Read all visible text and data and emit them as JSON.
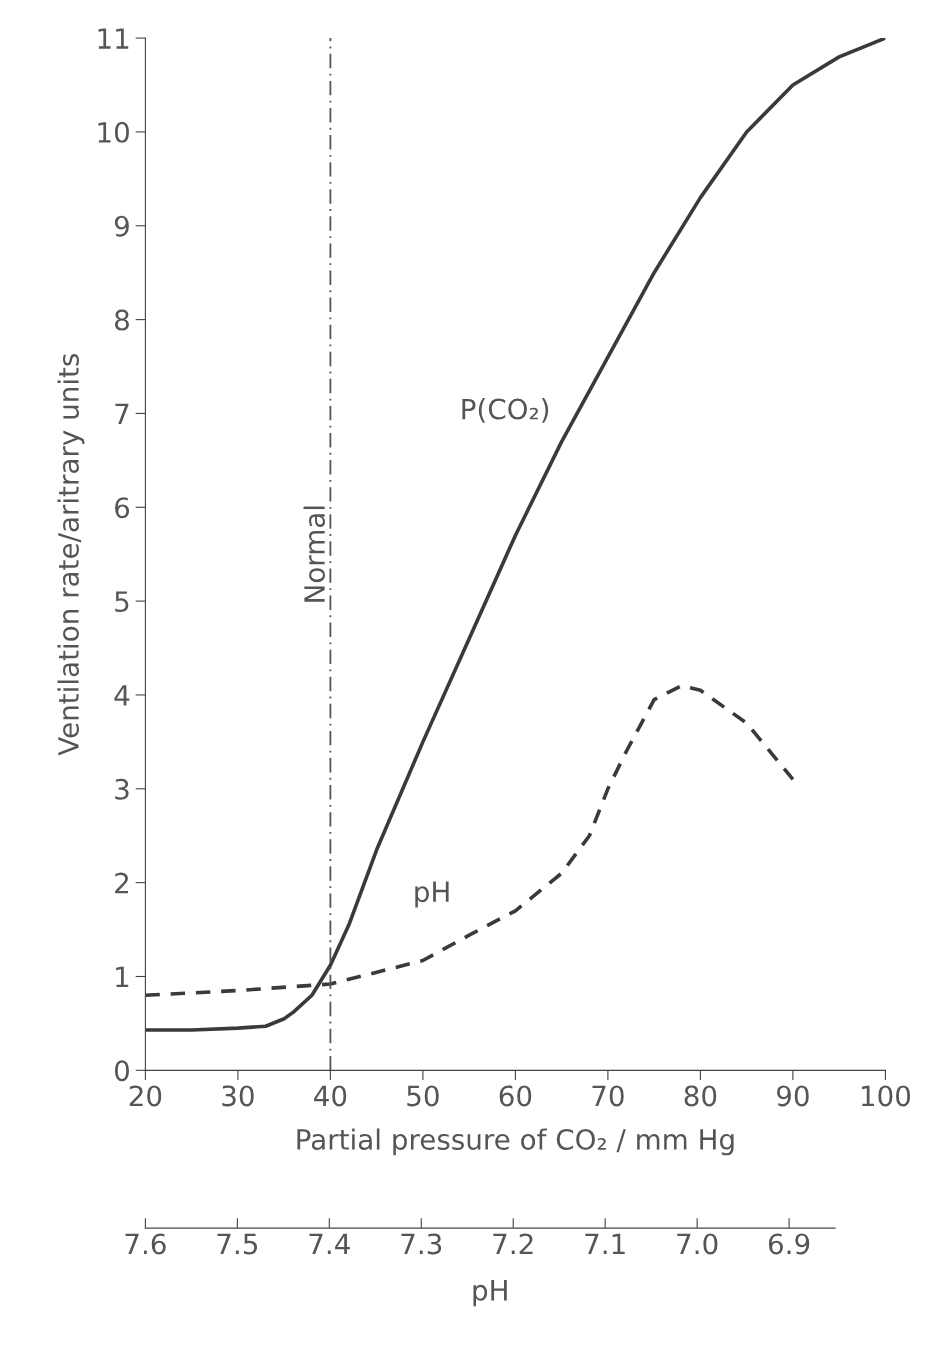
{
  "chart_data": {
    "type": "line",
    "xlabel": "Partial pressure of CO₂ / mm Hg",
    "ylabel": "Ventilation rate/aritrary units",
    "x2label": "pH",
    "xlim": [
      20,
      100
    ],
    "xticks": [
      20,
      30,
      40,
      50,
      60,
      70,
      80,
      90,
      100
    ],
    "ylim": [
      0,
      11
    ],
    "yticks": [
      0,
      1,
      2,
      3,
      4,
      5,
      6,
      7,
      8,
      9,
      10,
      11
    ],
    "x2lim": [
      7.6,
      6.85
    ],
    "x2ticks": [
      7.6,
      7.5,
      7.4,
      7.3,
      7.2,
      7.1,
      {
        "value": 7.0,
        "label": "7.0"
      },
      6.9
    ],
    "grid": false,
    "legend": false,
    "series": [
      {
        "name": "P(CO₂)",
        "color": "#3a3a3a",
        "line_style": "solid",
        "x": [
          20,
          25,
          30,
          33,
          35,
          36,
          38,
          40,
          42,
          45,
          50,
          55,
          60,
          65,
          70,
          75,
          80,
          85,
          90,
          95,
          100
        ],
        "values": [
          0.43,
          0.43,
          0.45,
          0.47,
          0.55,
          0.62,
          0.8,
          1.12,
          1.55,
          2.35,
          3.5,
          4.6,
          5.7,
          6.7,
          7.6,
          8.5,
          9.3,
          10.0,
          10.5,
          10.8,
          11.0
        ]
      },
      {
        "name": "pH",
        "color": "#3a3a3a",
        "line_style": "dashed",
        "x": [
          20,
          30,
          40,
          50,
          55,
          60,
          65,
          68,
          70,
          72,
          75,
          78,
          80,
          85,
          90
        ],
        "values": [
          0.8,
          0.85,
          0.92,
          1.17,
          1.44,
          1.7,
          2.1,
          2.5,
          3.0,
          3.4,
          3.95,
          4.1,
          4.05,
          3.7,
          3.1
        ]
      }
    ],
    "ref_lines": [
      {
        "axis": "x",
        "value": 40,
        "label": "Normal",
        "color": "#555555",
        "line_style": "dashdot"
      }
    ]
  }
}
